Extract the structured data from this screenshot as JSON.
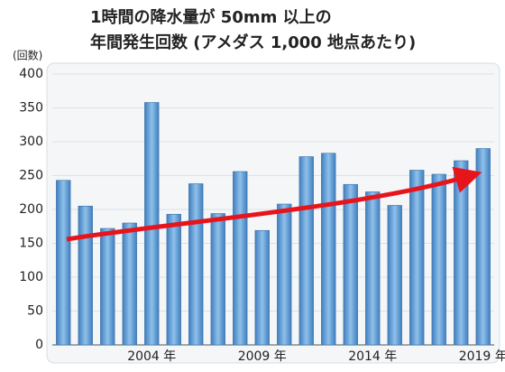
{
  "chart_data": {
    "type": "bar",
    "title": [
      "1時間の降水量が 50mm 以上の",
      "年間発生回数 (アメダス 1,000 地点あたり)"
    ],
    "y_label": "(回数)",
    "categories": [
      null,
      null,
      null,
      null,
      "2004 年",
      null,
      null,
      null,
      null,
      "2009 年",
      null,
      null,
      null,
      null,
      "2014 年",
      null,
      null,
      null,
      null,
      "2019 年"
    ],
    "values": [
      243,
      205,
      172,
      180,
      358,
      193,
      238,
      194,
      256,
      169,
      208,
      278,
      283,
      237,
      226,
      206,
      258,
      252,
      272,
      290
    ],
    "color": "#5b9bd5",
    "ylim": [
      0,
      400
    ],
    "yticks": [
      0,
      50,
      100,
      150,
      200,
      250,
      300,
      350,
      400
    ],
    "grid": true
  }
}
